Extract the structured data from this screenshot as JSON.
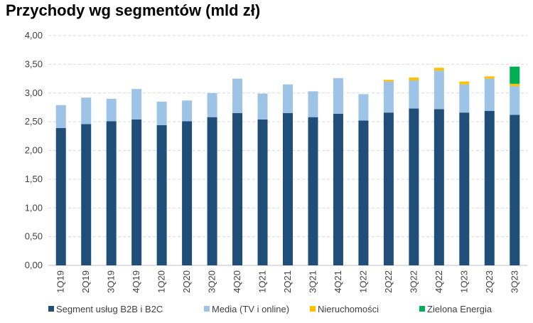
{
  "chart_data": {
    "type": "bar",
    "stacked": true,
    "title": "Przychody wg segmentów (mld zł)",
    "xlabel": "",
    "ylabel": "",
    "ylim": [
      0,
      4
    ],
    "yticks": [
      "0,00",
      "0,50",
      "1,00",
      "1,50",
      "2,00",
      "2,50",
      "3,00",
      "3,50",
      "4,00"
    ],
    "grid": true,
    "legend_position": "bottom",
    "categories": [
      "1Q19",
      "2Q19",
      "3Q19",
      "4Q19",
      "1Q20",
      "2Q20",
      "3Q20",
      "4Q20",
      "1Q21",
      "2Q21",
      "3Q21",
      "4Q21",
      "1Q22",
      "2Q22",
      "3Q22",
      "4Q22",
      "1Q23",
      "2Q23",
      "3Q23"
    ],
    "series": [
      {
        "name": "Segment usług B2B i B2C",
        "color": "#1f4e79",
        "values": [
          2.39,
          2.46,
          2.51,
          2.54,
          2.44,
          2.51,
          2.58,
          2.65,
          2.54,
          2.65,
          2.58,
          2.64,
          2.52,
          2.66,
          2.73,
          2.72,
          2.66,
          2.69,
          2.62
        ]
      },
      {
        "name": "Media (TV i online)",
        "color": "#9dc3e6",
        "values": [
          0.4,
          0.46,
          0.39,
          0.53,
          0.41,
          0.36,
          0.42,
          0.6,
          0.45,
          0.5,
          0.45,
          0.62,
          0.46,
          0.54,
          0.49,
          0.67,
          0.49,
          0.56,
          0.5
        ]
      },
      {
        "name": "Nieruchomości",
        "color": "#ffc000",
        "values": [
          0,
          0,
          0,
          0,
          0,
          0,
          0,
          0,
          0,
          0,
          0,
          0,
          0,
          0.03,
          0.05,
          0.05,
          0.05,
          0.04,
          0.04
        ]
      },
      {
        "name": "Zielona Energia",
        "color": "#00b050",
        "values": [
          0,
          0,
          0,
          0,
          0,
          0,
          0,
          0,
          0,
          0,
          0,
          0,
          0,
          0,
          0,
          0,
          0,
          0,
          0.3
        ]
      }
    ]
  }
}
